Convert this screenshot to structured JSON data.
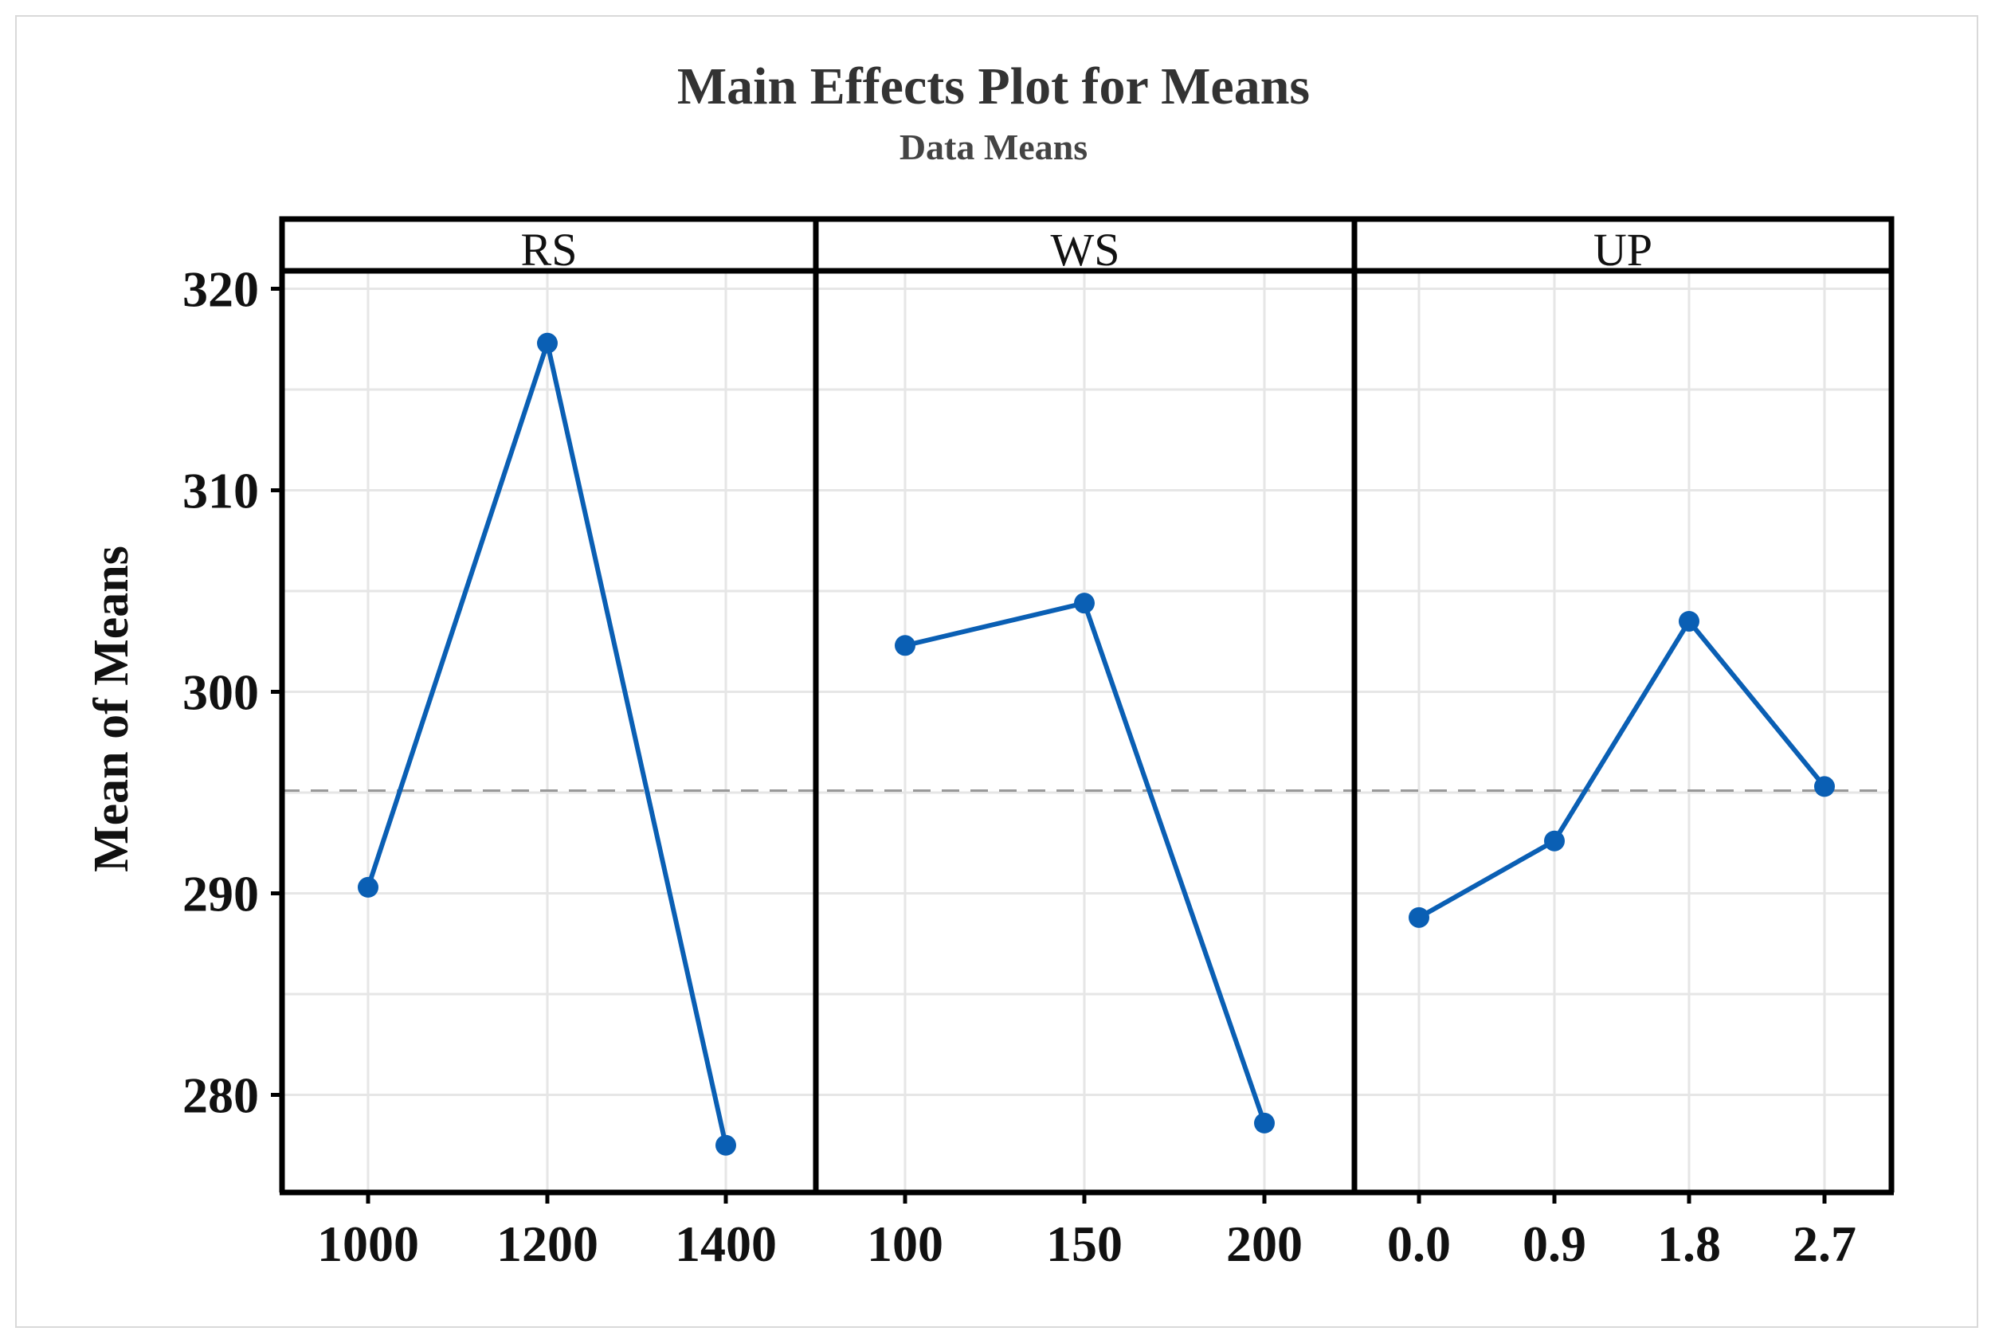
{
  "chart_data": {
    "type": "line",
    "title": "Main Effects Plot for Means",
    "subtitle": "Data Means",
    "ylabel": "Mean of Means",
    "ylim": [
      275,
      321
    ],
    "yticks": [
      "280",
      "290",
      "300",
      "310",
      "320"
    ],
    "reference_line": 295.1,
    "grid": true,
    "panels": [
      {
        "name": "RS",
        "categories": [
          "1000",
          "1200",
          "1400"
        ],
        "values": [
          290.3,
          317.3,
          277.5
        ]
      },
      {
        "name": "WS",
        "categories": [
          "100",
          "150",
          "200"
        ],
        "values": [
          302.3,
          304.4,
          278.6
        ]
      },
      {
        "name": "UP",
        "categories": [
          "0.0",
          "0.9",
          "1.8",
          "2.7"
        ],
        "values": [
          288.8,
          292.6,
          303.5,
          295.3
        ]
      }
    ],
    "colors": {
      "series": "#0a5fb4",
      "reference": "#999999",
      "grid": "#e6e6e6",
      "axis": "#000000"
    }
  }
}
